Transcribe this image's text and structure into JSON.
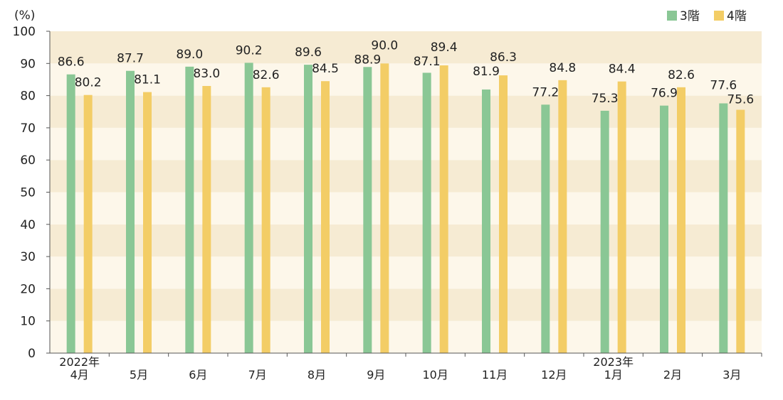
{
  "chart_data": {
    "type": "bar",
    "y_unit": "(%)",
    "ylim": [
      0,
      100
    ],
    "y_ticks": [
      0,
      10,
      20,
      30,
      40,
      50,
      60,
      70,
      80,
      90,
      100
    ],
    "categories": [
      {
        "year": "2022年",
        "month": "4月"
      },
      {
        "year": "",
        "month": "5月"
      },
      {
        "year": "",
        "month": "6月"
      },
      {
        "year": "",
        "month": "7月"
      },
      {
        "year": "",
        "month": "8月"
      },
      {
        "year": "",
        "month": "9月"
      },
      {
        "year": "",
        "month": "10月"
      },
      {
        "year": "",
        "month": "11月"
      },
      {
        "year": "",
        "month": "12月"
      },
      {
        "year": "2023年",
        "month": "1月"
      },
      {
        "year": "",
        "month": "2月"
      },
      {
        "year": "",
        "month": "3月"
      }
    ],
    "series": [
      {
        "name": "3階",
        "color": "#8ac795",
        "values": [
          86.6,
          87.7,
          89.0,
          90.2,
          89.6,
          88.9,
          87.1,
          81.9,
          77.2,
          75.3,
          76.9,
          77.6
        ],
        "labels": [
          "86.6",
          "87.7",
          "89.0",
          "90.2",
          "89.6",
          "88.9",
          "87.1",
          "81.9",
          "77.2",
          "75.3",
          "76.9",
          "77.6"
        ]
      },
      {
        "name": "4階",
        "color": "#f3cd66",
        "values": [
          80.2,
          81.1,
          83.0,
          82.6,
          84.5,
          90.0,
          89.4,
          86.3,
          84.8,
          84.4,
          82.6,
          75.6
        ],
        "labels": [
          "80.2",
          "81.1",
          "83.0",
          "82.6",
          "84.5",
          "90.0",
          "89.4",
          "86.3",
          "84.8",
          "84.4",
          "82.6",
          "75.6"
        ]
      }
    ],
    "band_colors": [
      "#fdf7ea",
      "#f6ebd3"
    ],
    "legend_position": "top-right"
  }
}
